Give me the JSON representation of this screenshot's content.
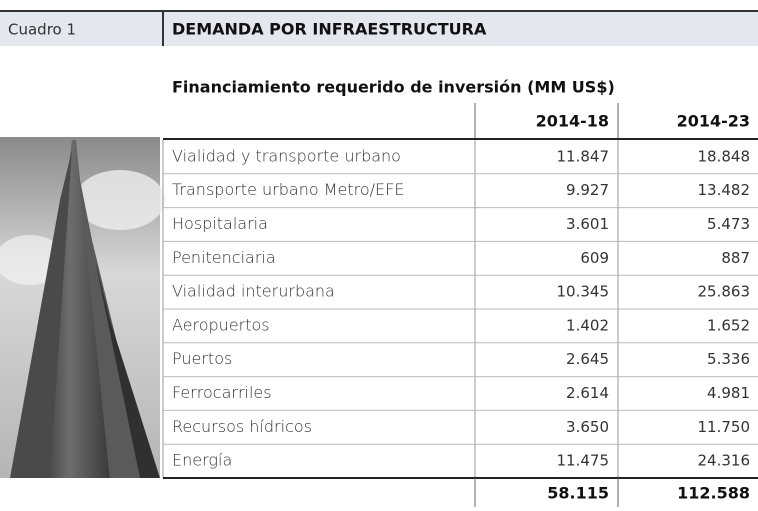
{
  "header": {
    "label": "Cuadro 1",
    "title": "DEMANDA POR INFRAESTRUCTURA"
  },
  "table": {
    "caption": "Financiamiento requerido de inversión (MM US$)",
    "columns": [
      "2014-18",
      "2014-23"
    ],
    "rows": [
      [
        "Vialidad y transporte urbano",
        "11.847",
        "18.848"
      ],
      [
        "Transporte urbano Metro/EFE",
        "9.927",
        "13.482"
      ],
      [
        "Hospitalaria",
        "3.601",
        "5.473"
      ],
      [
        "Penitenciaria",
        "609",
        "887"
      ],
      [
        "Vialidad interurbana",
        "10.345",
        "25.863"
      ],
      [
        "Aeropuertos",
        "1.402",
        "1.652"
      ],
      [
        "Puertos",
        "2.645",
        "5.336"
      ],
      [
        "Ferrocarriles",
        "2.614",
        "4.981"
      ],
      [
        "Recursos hídricos",
        "3.650",
        "11.750"
      ],
      [
        "Energía",
        "11.475",
        "24.316"
      ]
    ],
    "totals": [
      "58.115",
      "112.588"
    ]
  }
}
